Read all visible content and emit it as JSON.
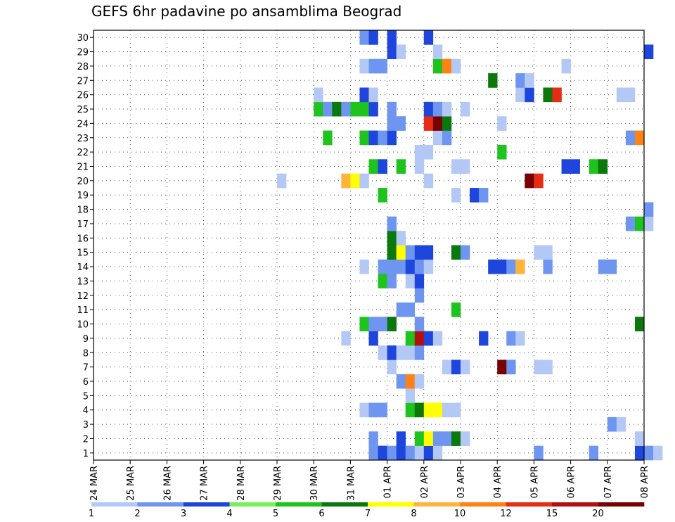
{
  "chart_data": {
    "type": "heatmap",
    "title": "GEFS 6hr padavine po ansamblima Beograd",
    "xlabel": "",
    "ylabel": "",
    "x_ticks": [
      "24 MAR",
      "25 MAR",
      "26 MAR",
      "27 MAR",
      "28 MAR",
      "29 MAR",
      "30 MAR",
      "31 MAR",
      "01 APR",
      "02 APR",
      "03 APR",
      "04 APR",
      "05 APR",
      "06 APR",
      "07 APR",
      "08 APR"
    ],
    "y_ticks": [
      "1",
      "2",
      "3",
      "4",
      "5",
      "6",
      "7",
      "8",
      "9",
      "10",
      "11",
      "12",
      "13",
      "14",
      "15",
      "16",
      "17",
      "18",
      "19",
      "20",
      "21",
      "22",
      "23",
      "24",
      "25",
      "26",
      "27",
      "28",
      "29",
      "30"
    ],
    "x_start": "24 MAR 00Z",
    "x_step_hours": 6,
    "n_steps": 60,
    "y_range": [
      1,
      30
    ],
    "grid": true,
    "color_scale": {
      "levels": [
        "1",
        "2",
        "3",
        "4",
        "5",
        "6",
        "7",
        "8",
        "10",
        "12",
        "15",
        "20"
      ],
      "colors": [
        "#b4c8f5",
        "#6e96f0",
        "#1e46dc",
        "#78f05a",
        "#1ec31e",
        "#0a780a",
        "#ffff00",
        "#ffb43c",
        "#ff8214",
        "#e62d14",
        "#b40f0f",
        "#780000"
      ]
    },
    "cells": [
      [
        1,
        "31 MAR 12Z",
        2
      ],
      [
        1,
        "31 MAR 18Z",
        3
      ],
      [
        1,
        "01 APR 00Z",
        2
      ],
      [
        1,
        "01 APR 06Z",
        3
      ],
      [
        1,
        "01 APR 12Z",
        2
      ],
      [
        1,
        "01 APR 18Z",
        1
      ],
      [
        1,
        "02 APR 00Z",
        3
      ],
      [
        1,
        "02 APR 06Z",
        1
      ],
      [
        1,
        "05 APR 00Z",
        2
      ],
      [
        1,
        "06 APR 12Z",
        2
      ],
      [
        1,
        "07 APR 18Z",
        3
      ],
      [
        1,
        "08 APR 00Z",
        2
      ],
      [
        1,
        "08 APR 06Z",
        1
      ],
      [
        2,
        "31 MAR 12Z",
        2
      ],
      [
        2,
        "01 APR 06Z",
        3
      ],
      [
        2,
        "01 APR 18Z",
        5
      ],
      [
        2,
        "02 APR 00Z",
        7
      ],
      [
        2,
        "02 APR 06Z",
        2
      ],
      [
        2,
        "02 APR 12Z",
        2
      ],
      [
        2,
        "02 APR 18Z",
        6
      ],
      [
        2,
        "03 APR 00Z",
        1
      ],
      [
        2,
        "07 APR 18Z",
        1
      ],
      [
        3,
        "07 APR 00Z",
        2
      ],
      [
        3,
        "07 APR 06Z",
        1
      ],
      [
        4,
        "31 MAR 06Z",
        1
      ],
      [
        4,
        "31 MAR 12Z",
        2
      ],
      [
        4,
        "31 MAR 18Z",
        2
      ],
      [
        4,
        "01 APR 12Z",
        5
      ],
      [
        4,
        "01 APR 18Z",
        6
      ],
      [
        4,
        "02 APR 00Z",
        7
      ],
      [
        4,
        "02 APR 06Z",
        7
      ],
      [
        4,
        "02 APR 12Z",
        1
      ],
      [
        4,
        "02 APR 18Z",
        1
      ],
      [
        5,
        "01 APR 12Z",
        1
      ],
      [
        6,
        "01 APR 06Z",
        2
      ],
      [
        6,
        "01 APR 12Z",
        10
      ],
      [
        6,
        "01 APR 18Z",
        1
      ],
      [
        7,
        "01 APR 00Z",
        1
      ],
      [
        7,
        "02 APR 12Z",
        1
      ],
      [
        7,
        "02 APR 18Z",
        3
      ],
      [
        7,
        "03 APR 00Z",
        1
      ],
      [
        7,
        "04 APR 00Z",
        20
      ],
      [
        7,
        "04 APR 06Z",
        2
      ],
      [
        7,
        "05 APR 00Z",
        1
      ],
      [
        7,
        "05 APR 06Z",
        1
      ],
      [
        8,
        "31 MAR 18Z",
        1
      ],
      [
        8,
        "01 APR 00Z",
        3
      ],
      [
        8,
        "01 APR 06Z",
        1
      ],
      [
        8,
        "01 APR 12Z",
        1
      ],
      [
        8,
        "01 APR 18Z",
        2
      ],
      [
        9,
        "30 MAR 18Z",
        1
      ],
      [
        9,
        "31 MAR 12Z",
        3
      ],
      [
        9,
        "01 APR 12Z",
        5
      ],
      [
        9,
        "01 APR 18Z",
        15
      ],
      [
        9,
        "02 APR 00Z",
        3
      ],
      [
        9,
        "02 APR 06Z",
        1
      ],
      [
        9,
        "03 APR 12Z",
        3
      ],
      [
        9,
        "04 APR 06Z",
        2
      ],
      [
        9,
        "04 APR 12Z",
        1
      ],
      [
        10,
        "31 MAR 06Z",
        5
      ],
      [
        10,
        "31 MAR 12Z",
        2
      ],
      [
        10,
        "31 MAR 18Z",
        2
      ],
      [
        10,
        "01 APR 00Z",
        6
      ],
      [
        10,
        "01 APR 18Z",
        2
      ],
      [
        10,
        "07 APR 18Z",
        6
      ],
      [
        11,
        "01 APR 06Z",
        2
      ],
      [
        11,
        "01 APR 12Z",
        2
      ],
      [
        11,
        "02 APR 18Z",
        5
      ],
      [
        12,
        "01 APR 18Z",
        2
      ],
      [
        13,
        "31 MAR 18Z",
        5
      ],
      [
        13,
        "01 APR 00Z",
        2
      ],
      [
        13,
        "01 APR 12Z",
        1
      ],
      [
        13,
        "01 APR 18Z",
        3
      ],
      [
        14,
        "31 MAR 06Z",
        1
      ],
      [
        14,
        "31 MAR 18Z",
        2
      ],
      [
        14,
        "01 APR 00Z",
        2
      ],
      [
        14,
        "01 APR 06Z",
        2
      ],
      [
        14,
        "01 APR 12Z",
        3
      ],
      [
        14,
        "01 APR 18Z",
        2
      ],
      [
        14,
        "02 APR 00Z",
        1
      ],
      [
        14,
        "03 APR 18Z",
        3
      ],
      [
        14,
        "04 APR 00Z",
        3
      ],
      [
        14,
        "04 APR 06Z",
        2
      ],
      [
        14,
        "04 APR 12Z",
        8
      ],
      [
        14,
        "05 APR 06Z",
        2
      ],
      [
        14,
        "06 APR 18Z",
        2
      ],
      [
        14,
        "07 APR 00Z",
        2
      ],
      [
        15,
        "01 APR 00Z",
        6
      ],
      [
        15,
        "01 APR 06Z",
        7
      ],
      [
        15,
        "01 APR 12Z",
        2
      ],
      [
        15,
        "01 APR 18Z",
        3
      ],
      [
        15,
        "02 APR 00Z",
        3
      ],
      [
        15,
        "02 APR 18Z",
        6
      ],
      [
        15,
        "03 APR 00Z",
        2
      ],
      [
        15,
        "05 APR 00Z",
        1
      ],
      [
        15,
        "05 APR 06Z",
        1
      ],
      [
        16,
        "01 APR 00Z",
        6
      ],
      [
        16,
        "01 APR 06Z",
        1
      ],
      [
        17,
        "01 APR 00Z",
        2
      ],
      [
        17,
        "07 APR 12Z",
        2
      ],
      [
        17,
        "07 APR 18Z",
        5
      ],
      [
        17,
        "08 APR 00Z",
        1
      ],
      [
        18,
        "08 APR 00Z",
        2
      ],
      [
        19,
        "31 MAR 18Z",
        5
      ],
      [
        19,
        "02 APR 18Z",
        1
      ],
      [
        19,
        "03 APR 06Z",
        3
      ],
      [
        19,
        "03 APR 12Z",
        2
      ],
      [
        20,
        "29 MAR 00Z",
        1
      ],
      [
        20,
        "30 MAR 18Z",
        8
      ],
      [
        20,
        "31 MAR 00Z",
        7
      ],
      [
        20,
        "31 MAR 06Z",
        1
      ],
      [
        20,
        "02 APR 00Z",
        1
      ],
      [
        20,
        "04 APR 18Z",
        20
      ],
      [
        20,
        "05 APR 00Z",
        12
      ],
      [
        21,
        "31 MAR 12Z",
        5
      ],
      [
        21,
        "31 MAR 18Z",
        3
      ],
      [
        21,
        "01 APR 06Z",
        5
      ],
      [
        21,
        "01 APR 18Z",
        1
      ],
      [
        21,
        "02 APR 18Z",
        1
      ],
      [
        21,
        "03 APR 00Z",
        1
      ],
      [
        21,
        "05 APR 18Z",
        3
      ],
      [
        21,
        "06 APR 00Z",
        3
      ],
      [
        21,
        "06 APR 12Z",
        5
      ],
      [
        21,
        "06 APR 18Z",
        6
      ],
      [
        22,
        "01 APR 18Z",
        1
      ],
      [
        22,
        "02 APR 00Z",
        1
      ],
      [
        22,
        "04 APR 00Z",
        5
      ],
      [
        23,
        "30 MAR 06Z",
        5
      ],
      [
        23,
        "31 MAR 06Z",
        5
      ],
      [
        23,
        "31 MAR 12Z",
        3
      ],
      [
        23,
        "31 MAR 18Z",
        2
      ],
      [
        23,
        "01 APR 00Z",
        3
      ],
      [
        23,
        "02 APR 06Z",
        1
      ],
      [
        23,
        "02 APR 12Z",
        2
      ],
      [
        23,
        "07 APR 12Z",
        2
      ],
      [
        23,
        "07 APR 18Z",
        10
      ],
      [
        24,
        "01 APR 00Z",
        2
      ],
      [
        24,
        "01 APR 06Z",
        2
      ],
      [
        24,
        "02 APR 00Z",
        12
      ],
      [
        24,
        "02 APR 06Z",
        20
      ],
      [
        24,
        "02 APR 12Z",
        6
      ],
      [
        24,
        "04 APR 00Z",
        1
      ],
      [
        25,
        "30 MAR 00Z",
        5
      ],
      [
        25,
        "30 MAR 06Z",
        2
      ],
      [
        25,
        "30 MAR 12Z",
        6
      ],
      [
        25,
        "30 MAR 18Z",
        2
      ],
      [
        25,
        "31 MAR 00Z",
        5
      ],
      [
        25,
        "31 MAR 06Z",
        5
      ],
      [
        25,
        "31 MAR 12Z",
        3
      ],
      [
        25,
        "01 APR 00Z",
        2
      ],
      [
        25,
        "02 APR 00Z",
        3
      ],
      [
        25,
        "02 APR 06Z",
        2
      ],
      [
        25,
        "02 APR 12Z",
        1
      ],
      [
        25,
        "03 APR 00Z",
        1
      ],
      [
        26,
        "30 MAR 00Z",
        1
      ],
      [
        26,
        "31 MAR 06Z",
        3
      ],
      [
        26,
        "31 MAR 12Z",
        1
      ],
      [
        26,
        "04 APR 12Z",
        1
      ],
      [
        26,
        "04 APR 18Z",
        3
      ],
      [
        26,
        "05 APR 06Z",
        6
      ],
      [
        26,
        "05 APR 12Z",
        12
      ],
      [
        26,
        "07 APR 06Z",
        1
      ],
      [
        26,
        "07 APR 12Z",
        1
      ],
      [
        27,
        "03 APR 18Z",
        6
      ],
      [
        27,
        "04 APR 12Z",
        2
      ],
      [
        27,
        "04 APR 18Z",
        1
      ],
      [
        28,
        "31 MAR 06Z",
        1
      ],
      [
        28,
        "31 MAR 12Z",
        2
      ],
      [
        28,
        "31 MAR 18Z",
        2
      ],
      [
        28,
        "02 APR 06Z",
        5
      ],
      [
        28,
        "02 APR 12Z",
        10
      ],
      [
        28,
        "02 APR 18Z",
        1
      ],
      [
        28,
        "05 APR 18Z",
        1
      ],
      [
        29,
        "01 APR 00Z",
        3
      ],
      [
        29,
        "01 APR 06Z",
        1
      ],
      [
        29,
        "02 APR 06Z",
        1
      ],
      [
        29,
        "08 APR 00Z",
        3
      ],
      [
        30,
        "31 MAR 06Z",
        2
      ],
      [
        30,
        "31 MAR 12Z",
        3
      ],
      [
        30,
        "01 APR 00Z",
        3
      ],
      [
        30,
        "02 APR 00Z",
        3
      ]
    ]
  }
}
